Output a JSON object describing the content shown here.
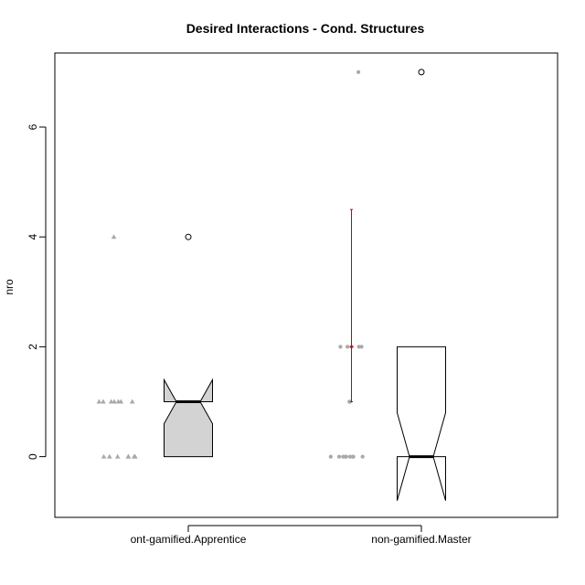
{
  "chart_data": {
    "type": "boxplot",
    "title": "Desired Interactions - Cond. Structures",
    "xlabel": "",
    "ylabel": "nro",
    "ylim": [
      -1.1,
      7.3
    ],
    "yticks": [
      0,
      2,
      4,
      6
    ],
    "categories": [
      "ont-gamified.Apprentice",
      "non-gamified.Master"
    ],
    "boxes": [
      {
        "category": "ont-gamified.Apprentice",
        "fill": "#d3d3d3",
        "q1": 0,
        "median": 1,
        "q3": 1,
        "whisker_low": 0,
        "whisker_high": 1,
        "notch_low": 0.6,
        "notch_high": 1.4,
        "outliers": [
          4
        ]
      },
      {
        "category": "non-gamified.Master",
        "fill": "#ffffff",
        "q1": 0,
        "median": 0,
        "q3": 2,
        "whisker_low": 0,
        "whisker_high": 2,
        "notch_low": -0.8,
        "notch_high": 0.8,
        "outliers": [
          7
        ]
      }
    ],
    "points": [
      {
        "category": "ont-gamified.Apprentice",
        "shape": "triangle",
        "color": "#a9a9a9",
        "values": [
          1,
          1,
          1,
          1,
          1,
          1,
          1,
          0,
          0,
          0,
          0,
          0,
          0,
          0,
          4
        ]
      },
      {
        "category": "non-gamified.Master",
        "shape": "circle",
        "color": "#a9a9a9",
        "values": [
          7,
          2,
          2,
          2,
          2,
          2,
          1,
          1,
          0,
          0,
          0,
          0,
          0,
          0,
          0,
          0,
          0
        ]
      }
    ],
    "error_bar": {
      "category": "non-gamified.Master",
      "color": "#cc0000",
      "center": 2,
      "low": 1,
      "high": 4.5
    },
    "grid": false
  }
}
